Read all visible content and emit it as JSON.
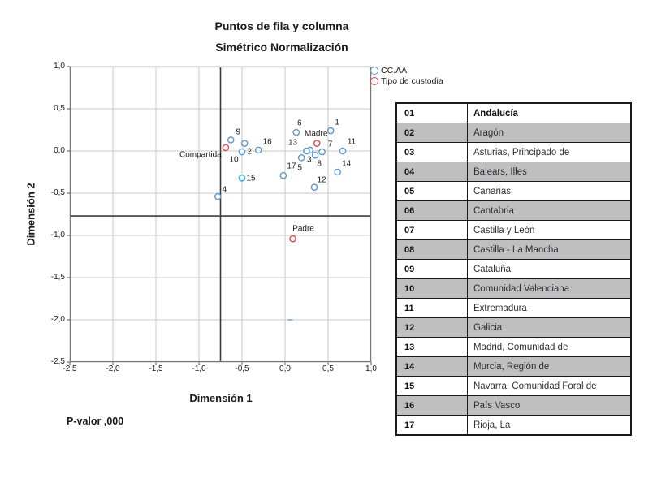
{
  "title": "Puntos de fila y columna",
  "subtitle": "Simétrico Normalización",
  "p_value": "P-valor ,000",
  "legend": {
    "items": [
      {
        "label": "CC.AA",
        "color": "#5C96CE"
      },
      {
        "label": "Tipo de custodia",
        "color": "#E2484E"
      }
    ]
  },
  "chart_data": {
    "type": "scatter",
    "title": "Puntos de fila y columna",
    "subtitle": "Simétrico Normalización",
    "xlabel": "Dimensión 1",
    "ylabel": "Dimensión 2",
    "xlim": [
      -2.5,
      1.0
    ],
    "ylim": [
      -2.5,
      1.0
    ],
    "x_ticks": [
      "-2,5",
      "-2,0",
      "-1,5",
      "-1,0",
      "-0,5",
      "0,0",
      "0,5",
      "1,0"
    ],
    "y_ticks": [
      "1,0",
      "0,5",
      "0,0",
      "-0,5",
      "-1,0",
      "-1,5",
      "-2,0",
      "-2,5"
    ],
    "grid": true,
    "grid_color": "#C9C9C9",
    "frame_color": "#7A7A7A",
    "refline_color": "#3C3C3C",
    "reference_lines": {
      "x": -0.75,
      "y": -0.77
    },
    "series": [
      {
        "name": "CC.AA",
        "color": "#5C96CE",
        "points": [
          {
            "label": "1",
            "x": 0.53,
            "y": 0.24,
            "dx": 8,
            "dy": -10
          },
          {
            "label": "2",
            "x": -0.47,
            "y": 0.09,
            "dx": 6,
            "dy": 10
          },
          {
            "label": "3",
            "x": 0.29,
            "y": 0.01,
            "dx": -1,
            "dy": 12
          },
          {
            "label": "4",
            "x": -0.78,
            "y": -0.54,
            "dx": 8,
            "dy": -8
          },
          {
            "label": "5",
            "x": 0.19,
            "y": -0.08,
            "dx": -2,
            "dy": 13
          },
          {
            "label": "6",
            "x": 0.13,
            "y": 0.22,
            "dx": 4,
            "dy": -11
          },
          {
            "label": "7",
            "x": 0.43,
            "y": -0.01,
            "dx": 10,
            "dy": -9
          },
          {
            "label": "8",
            "x": 0.35,
            "y": -0.05,
            "dx": 5,
            "dy": 11
          },
          {
            "label": "9",
            "x": -0.63,
            "y": 0.13,
            "dx": 9,
            "dy": -9
          },
          {
            "label": "10",
            "x": -0.5,
            "y": -0.01,
            "dx": -10,
            "dy": 10
          },
          {
            "label": "11",
            "x": 0.67,
            "y": 0.0,
            "dx": 11,
            "dy": -11
          },
          {
            "label": "12",
            "x": 0.34,
            "y": -0.43,
            "dx": 9,
            "dy": -9
          },
          {
            "label": "13",
            "x": 0.25,
            "y": 0.0,
            "dx": -17,
            "dy": -10
          },
          {
            "label": "14",
            "x": 0.61,
            "y": -0.25,
            "dx": 11,
            "dy": -10
          },
          {
            "label": "15",
            "x": -0.5,
            "y": -0.32,
            "dx": 11,
            "dy": 1,
            "color": "#35A8DE"
          },
          {
            "label": "16",
            "x": -0.31,
            "y": 0.01,
            "dx": 11,
            "dy": -10
          },
          {
            "label": "17",
            "x": -0.02,
            "y": -0.29,
            "dx": 10,
            "dy": -11
          }
        ]
      },
      {
        "name": "Tipo de custodia",
        "color": "#E2484E",
        "points": [
          {
            "label": "Compartida",
            "x": -0.69,
            "y": 0.04,
            "dx": -31,
            "dy": 9
          },
          {
            "label": "Madre",
            "x": 0.37,
            "y": 0.09,
            "dx": -1,
            "dy": -12
          },
          {
            "label": "Padre",
            "x": 0.09,
            "y": -1.04,
            "dx": 13,
            "dy": -12
          }
        ]
      }
    ],
    "stray_mark": {
      "x1": 0.03,
      "x2": 0.09,
      "y": -2.0,
      "color": "#8FBBDE"
    }
  },
  "table": {
    "rows": [
      {
        "num": "01",
        "name": "Andalucía",
        "bold": true
      },
      {
        "num": "02",
        "name": "Aragón"
      },
      {
        "num": "03",
        "name": "Asturias, Principado de"
      },
      {
        "num": "04",
        "name": "Balears, Illes"
      },
      {
        "num": "05",
        "name": "Canarias"
      },
      {
        "num": "06",
        "name": "Cantabria"
      },
      {
        "num": "07",
        "name": "Castilla y León"
      },
      {
        "num": "08",
        "name": "Castilla - La Mancha"
      },
      {
        "num": "09",
        "name": "Cataluña"
      },
      {
        "num": "10",
        "name": "Comunidad Valenciana"
      },
      {
        "num": "11",
        "name": "Extremadura"
      },
      {
        "num": "12",
        "name": "Galicia"
      },
      {
        "num": "13",
        "name": "Madrid, Comunidad de"
      },
      {
        "num": "14",
        "name": "Murcia, Región de"
      },
      {
        "num": "15",
        "name": "Navarra, Comunidad Foral de"
      },
      {
        "num": "16",
        "name": "País Vasco"
      },
      {
        "num": "17",
        "name": "Rioja, La"
      }
    ]
  }
}
